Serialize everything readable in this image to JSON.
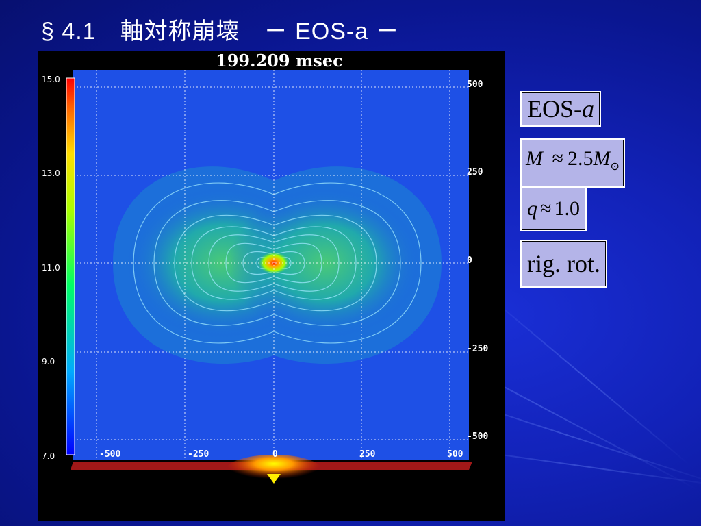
{
  "slide": {
    "title": "§ 4.1　軸対称崩壊　－ EOS-a －"
  },
  "figure": {
    "time_label": "199.209 msec",
    "colorbar_ticks": [
      "15.0",
      "13.0",
      "11.0",
      "9.0",
      "7.0"
    ],
    "x_ticks": [
      "-500",
      "-250",
      "0",
      "250",
      "500"
    ],
    "y_ticks": [
      "500",
      "250",
      "0",
      "-250",
      "-500"
    ]
  },
  "params": {
    "eos": "EOS-",
    "eos_italic": "a",
    "mass_symbol": "M",
    "approx": "≈",
    "mass_value": "2.5",
    "mass_unit": "M",
    "mass_sub": "⊙",
    "q_symbol": "q",
    "q_value": "1.0",
    "rotation": "rig. rot."
  },
  "colors": {
    "background": "#1222b8",
    "box_fill": "#b4b4e8",
    "plot_field": "#1e50e6"
  }
}
